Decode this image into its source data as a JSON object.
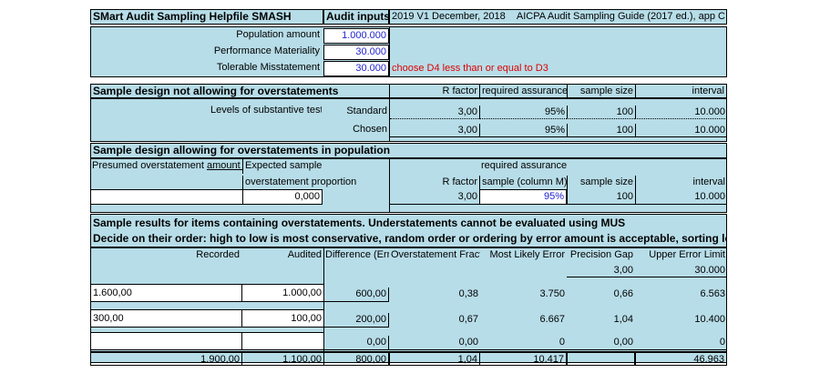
{
  "header": {
    "title": "SMart Audit Sampling Helpfile SMASH",
    "audit_inputs": "Audit inputs",
    "version": "2019 V1 December, 2018",
    "guide": "AICPA Audit Sampling Guide (2017 ed.), app C"
  },
  "inputs": [
    {
      "label": "Population amount",
      "value": "1.000.000"
    },
    {
      "label": "Performance Materiality",
      "value": "30.000"
    },
    {
      "label": "Tolerable Misstatement",
      "value": "30.000",
      "note": "choose D4 less than or equal to D3"
    }
  ],
  "design_no_over": {
    "title": "Sample design not allowing for overstatements",
    "cols": [
      "R factor",
      "required assurance",
      "sample size",
      "interval"
    ],
    "levels_label": "Levels of substantive testing",
    "rows": [
      {
        "label": "Standard",
        "r": "3,00",
        "assurance": "95%",
        "size": "100",
        "interval": "10.000"
      },
      {
        "label": "Chosen",
        "r": "3,00",
        "assurance": "95%",
        "size": "100",
        "interval": "10.000"
      }
    ]
  },
  "design_over": {
    "title": "Sample design allowing for overstatements in population",
    "presumed_label": "Presumed overstatement amount in population",
    "expected_label1": "Expected sample",
    "expected_label2": "overstatement proportion",
    "assurance_label1": "required assurance from",
    "assurance_label2": "sample (column M)",
    "r_label": "R factor",
    "size_label": "sample size",
    "interval_label": "interval",
    "values": {
      "presumed": "",
      "proportion": "0,000",
      "r": "3,00",
      "assurance": "95%",
      "size": "100",
      "interval": "10.000"
    }
  },
  "results": {
    "title1": "Sample results for items containing overstatements. Understatements cannot be evaluated using MUS",
    "title2": "Decide on their order: high to low is most conservative, random order or ordering by error amount is acceptable, sorting low to high is not.",
    "cols": [
      "Recorded",
      "Audited",
      "Difference (Error)",
      "Overstatement Fraction",
      "Most Likely Error",
      "Precision Gap",
      "Upper Error Limit"
    ],
    "base": {
      "gap": "3,00",
      "upper": "30.000"
    },
    "rows": [
      {
        "recorded": "1.600,00",
        "audited": "1.000,00",
        "diff": "600,00",
        "frac": "0,38",
        "mle": "3.750",
        "gap": "0,66",
        "upper": "6.563"
      },
      {
        "recorded": "300,00",
        "audited": "100,00",
        "diff": "200,00",
        "frac": "0,67",
        "mle": "6.667",
        "gap": "1,04",
        "upper": "10.400"
      },
      {
        "recorded": "",
        "audited": "",
        "diff": "0,00",
        "frac": "0,00",
        "mle": "0",
        "gap": "0,00",
        "upper": "0"
      }
    ],
    "totals": {
      "recorded": "1.900,00",
      "audited": "1.100,00",
      "diff": "800,00",
      "frac": "1,04",
      "mle": "10.417",
      "upper": "46.963"
    }
  }
}
